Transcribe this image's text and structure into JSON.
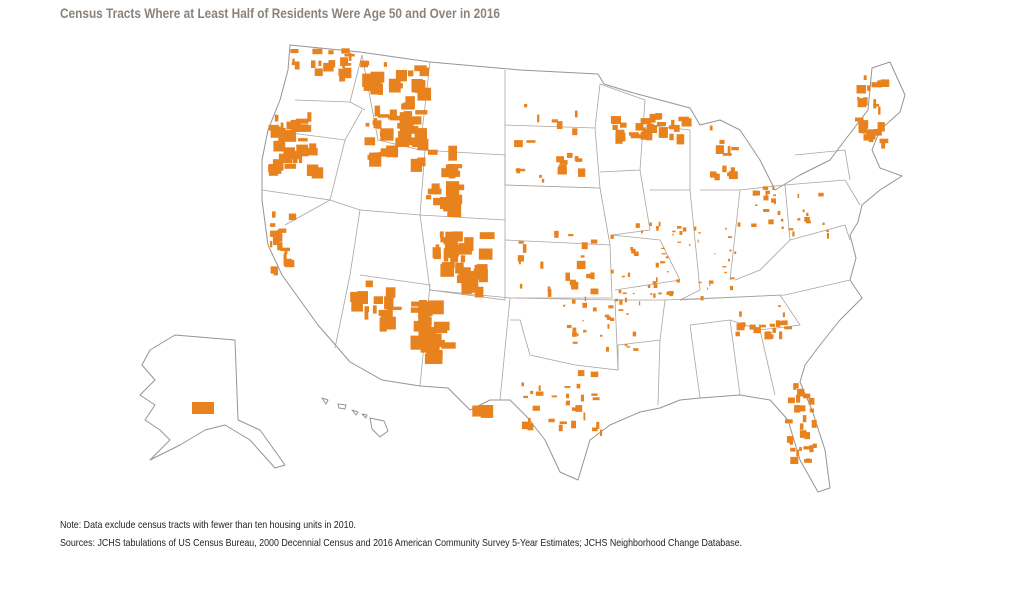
{
  "title": "Census Tracts Where at Least Half of Residents Were Age 50 and Over in 2016",
  "note": "Note: Data exclude census tracts with fewer than ten housing units in 2010.",
  "sources": "Sources: JCHS tabulations of US Census Bureau, 2000 Decennial Census and 2016 American Community Survey 5-Year Estimates; JCHS Neighborhood Change Database."
}
